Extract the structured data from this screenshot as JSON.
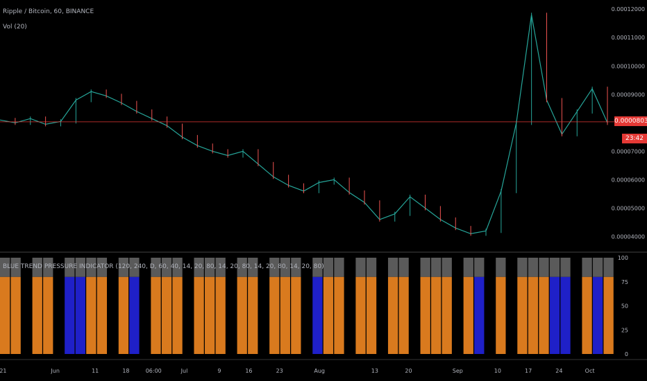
{
  "header": {
    "symbol_line": "Ripple / Bitcoin, 60, BINANCE",
    "volume_label": "Vol (20)"
  },
  "indicator": {
    "label": "BLUE TREND PRESSURE INDICATOR  (120, 240, D, 60, 40, 14, 20, 80, 14, 20, 80, 14, 20, 80, 14, 20, 80)"
  },
  "price_axis": {
    "ticks": [
      "0.00012000",
      "0.00011000",
      "0.00010000",
      "0.00009000",
      "0.00007000",
      "0.00006000",
      "0.00005000",
      "0.00004000"
    ],
    "current_price": "0.00008035",
    "countdown": "23:42"
  },
  "indicator_axis": {
    "ticks": [
      "100",
      "75",
      "50",
      "25",
      "0"
    ]
  },
  "time_axis": {
    "ticks": [
      "21",
      "Jun",
      "11",
      "18",
      "06:00",
      "Jul",
      "9",
      "16",
      "23",
      "Aug",
      "13",
      "20",
      "Sep",
      "10",
      "17",
      "24",
      "Oct"
    ]
  },
  "colors": {
    "background": "#000000",
    "up": "#26a69a",
    "down": "#ef5350",
    "current_line": "#e53935",
    "orange": "#d97a1e",
    "blue": "#1f20c8",
    "gray": "#5a5a5a"
  },
  "chart_data": {
    "type": "line",
    "xlabel": "",
    "ylabel": "",
    "ylim": [
      3.5e-05,
      0.000122
    ],
    "series": [
      {
        "values": [
          8.1e-05,
          8e-05,
          8.15e-05,
          7.95e-05,
          8.05e-05,
          8.8e-05,
          9.1e-05,
          8.95e-05,
          8.7e-05,
          8.4e-05,
          8.15e-05,
          7.9e-05,
          7.5e-05,
          7.2e-05,
          7e-05,
          6.85e-05,
          7e-05,
          6.55e-05,
          6.1e-05,
          5.8e-05,
          5.6e-05,
          5.9e-05,
          6e-05,
          5.55e-05,
          5.2e-05,
          4.6e-05,
          4.8e-05,
          5.4e-05,
          5e-05,
          4.6e-05,
          4.3e-05,
          4.1e-05,
          4.2e-05,
          5.6e-05,
          8e-05,
          0.000118,
          8.8e-05,
          7.6e-05,
          8.4e-05,
          9.2e-05,
          8e-05
        ]
      }
    ],
    "current_price": 8.035e-05,
    "indicator": {
      "ylim": [
        0,
        100
      ],
      "levels": [
        80,
        100
      ],
      "states": [
        "o",
        "o",
        "g",
        "o",
        "o",
        "g",
        "b",
        "b",
        "o",
        "o",
        "g",
        "o",
        "b",
        "g",
        "o",
        "o",
        "o",
        "g",
        "o",
        "o",
        "o",
        "g",
        "o",
        "o",
        "g",
        "o",
        "o",
        "o",
        "g",
        "b",
        "o",
        "o",
        "g",
        "o",
        "o",
        "g",
        "o",
        "o",
        "g",
        "o",
        "o",
        "o",
        "g",
        "o",
        "b",
        "g",
        "o",
        "g",
        "o",
        "o",
        "o",
        "b",
        "b",
        "g",
        "o",
        "b",
        "o"
      ]
    }
  }
}
